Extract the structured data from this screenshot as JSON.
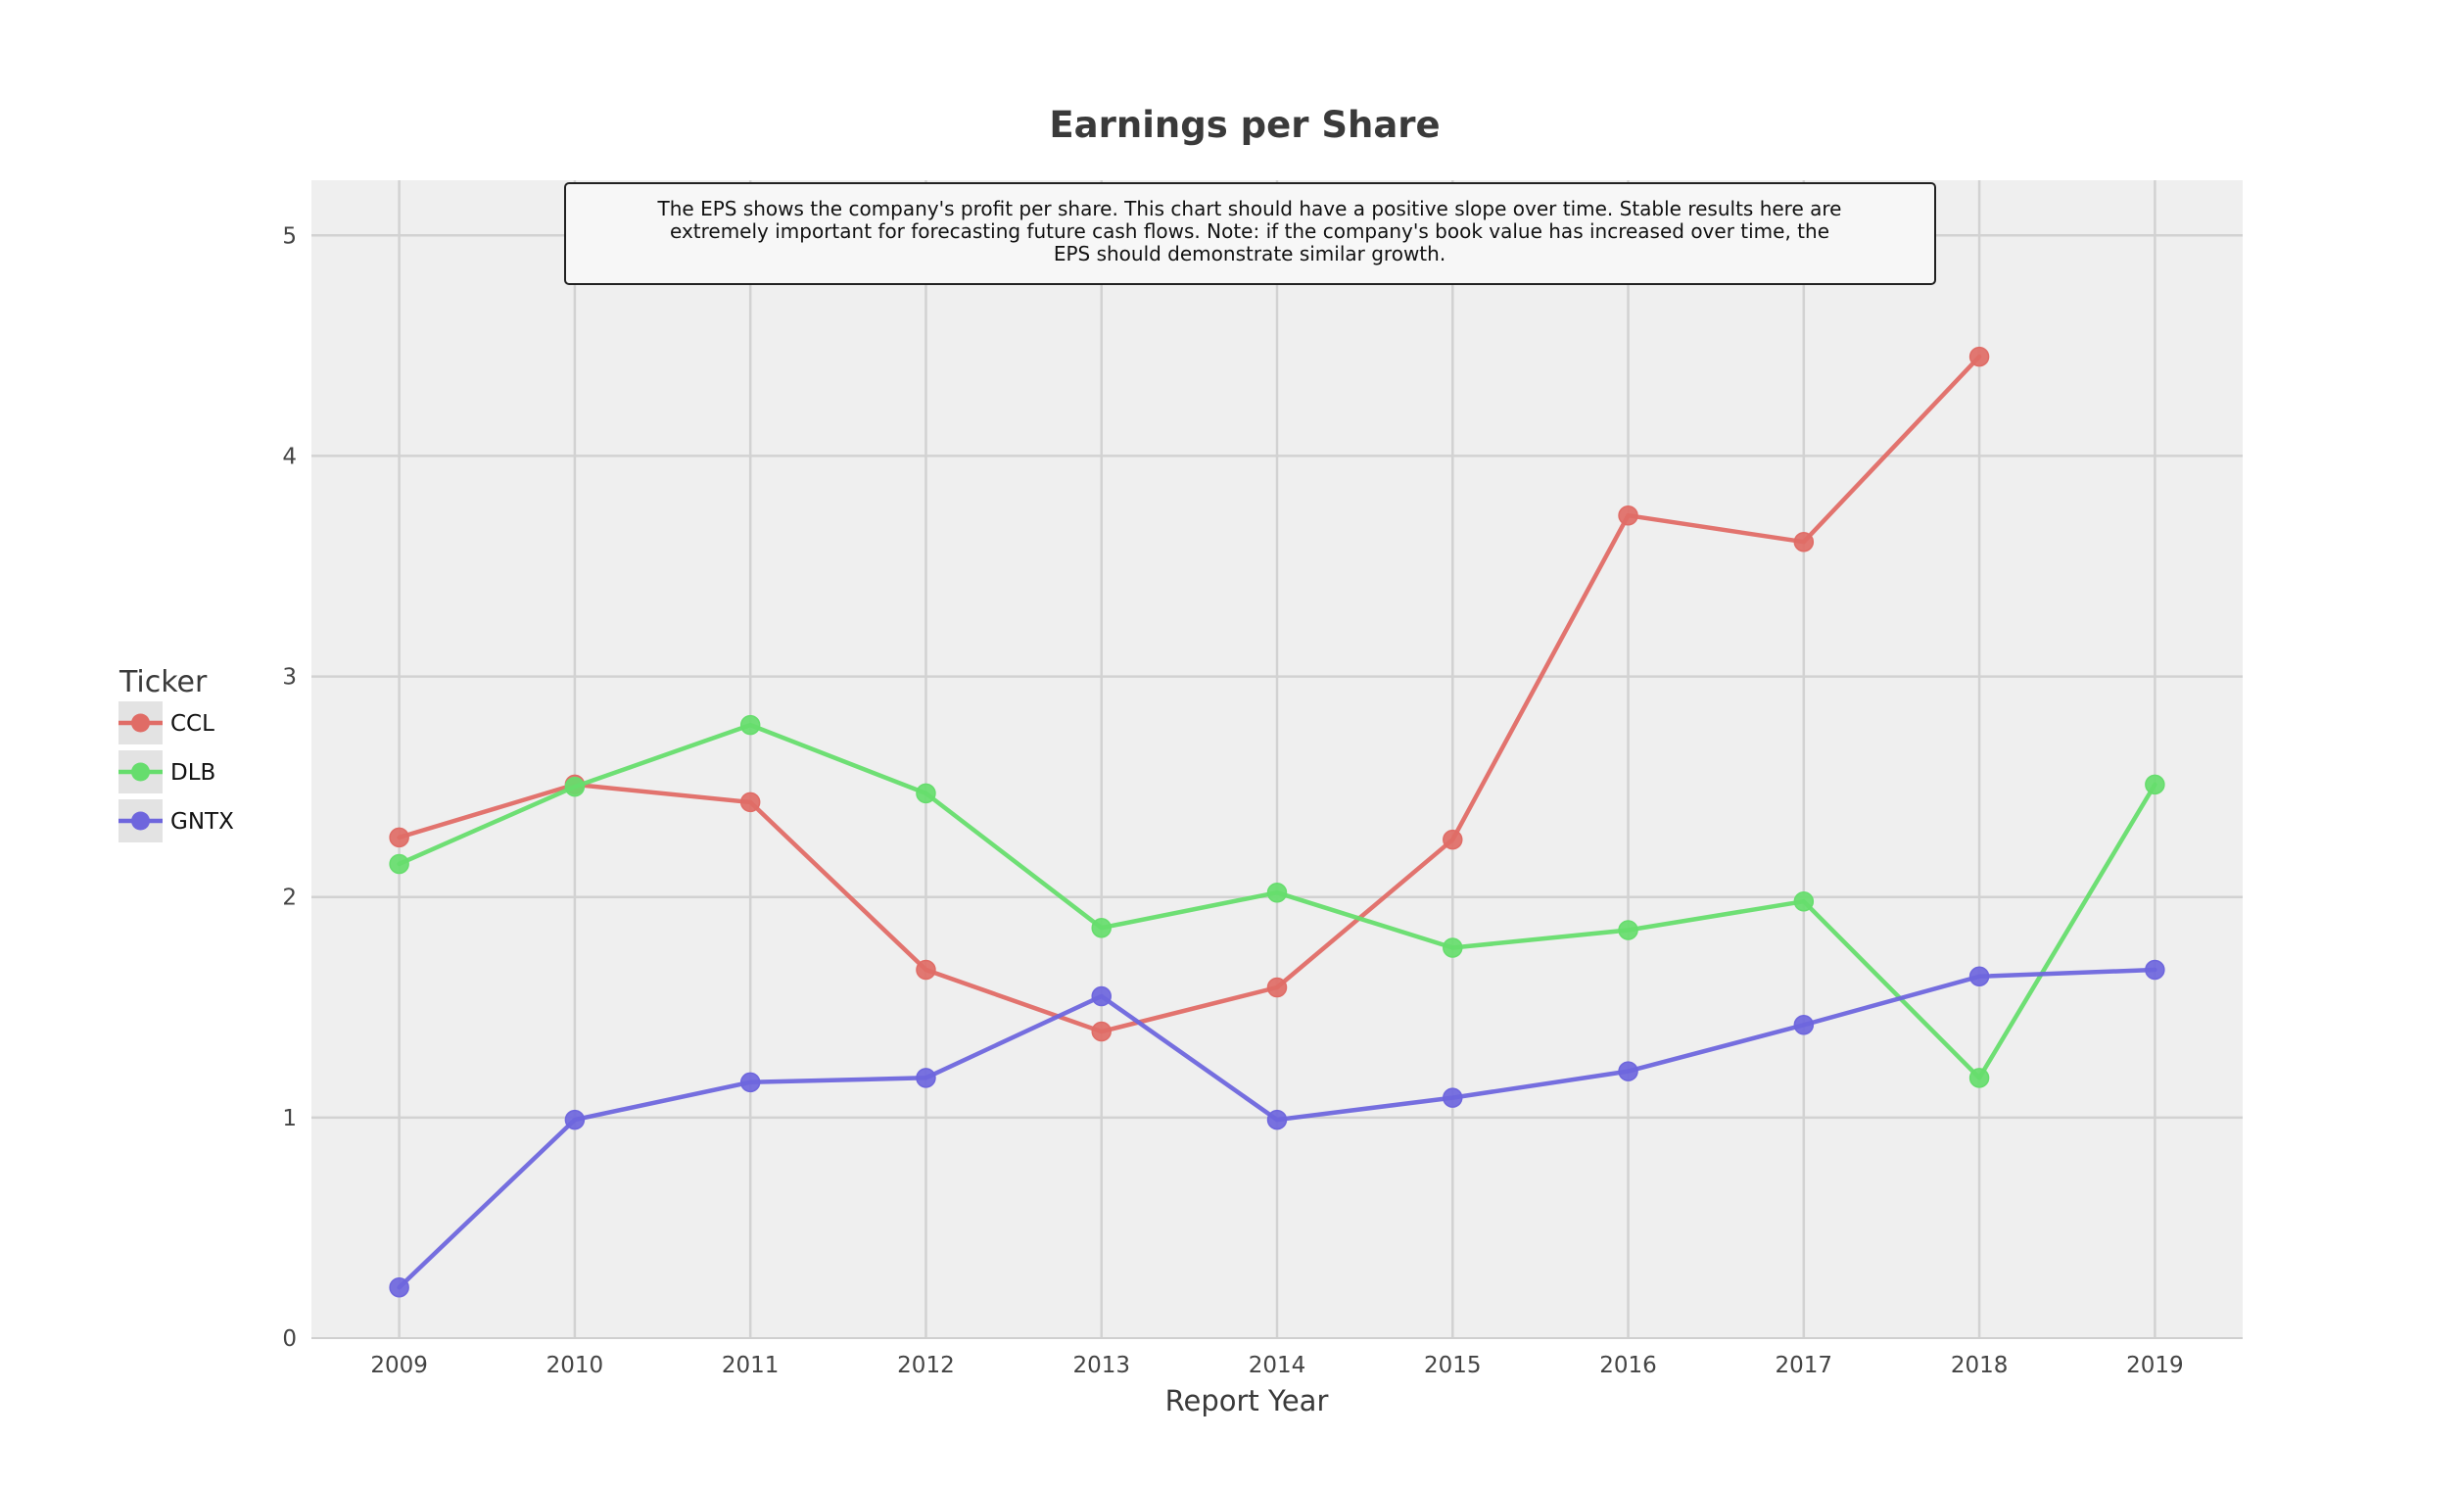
{
  "chart_data": {
    "type": "line",
    "title": "Earnings per Share",
    "xlabel": "Report Year",
    "ylabel": "",
    "xlim": [
      2008.5,
      2019.5
    ],
    "ylim": [
      0,
      5.25
    ],
    "x_ticks": [
      "2009",
      "2010",
      "2011",
      "2012",
      "2013",
      "2014",
      "2015",
      "2016",
      "2017",
      "2018",
      "2019"
    ],
    "y_ticks": [
      "0",
      "1",
      "2",
      "3",
      "4",
      "5"
    ],
    "grid": true,
    "legend": {
      "title": "Ticker",
      "placement": "left"
    },
    "annotation": [
      "The EPS shows the company's profit per share. This chart should have a positive slope over time. Stable results here are",
      "extremely important for forecasting future cash flows. Note: if the company's book value has increased over time, the",
      "EPS should demonstrate similar growth."
    ],
    "series": [
      {
        "name": "CCL",
        "color": "#e06c66",
        "x": [
          2009,
          2010,
          2011,
          2012,
          2013,
          2014,
          2015,
          2016,
          2017,
          2018
        ],
        "values": [
          2.27,
          2.51,
          2.43,
          1.67,
          1.39,
          1.59,
          2.26,
          3.73,
          3.61,
          4.45
        ]
      },
      {
        "name": "DLB",
        "color": "#66dd6d",
        "x": [
          2009,
          2010,
          2011,
          2012,
          2013,
          2014,
          2015,
          2016,
          2017,
          2018,
          2019
        ],
        "values": [
          2.15,
          2.5,
          2.78,
          2.47,
          1.86,
          2.02,
          1.77,
          1.85,
          1.98,
          1.18,
          2.51
        ]
      },
      {
        "name": "GNTX",
        "color": "#6e66dd",
        "x": [
          2009,
          2010,
          2011,
          2012,
          2013,
          2014,
          2015,
          2016,
          2017,
          2018,
          2019
        ],
        "values": [
          0.23,
          0.99,
          1.16,
          1.18,
          1.55,
          0.99,
          1.09,
          1.21,
          1.42,
          1.64,
          1.67
        ]
      }
    ]
  }
}
